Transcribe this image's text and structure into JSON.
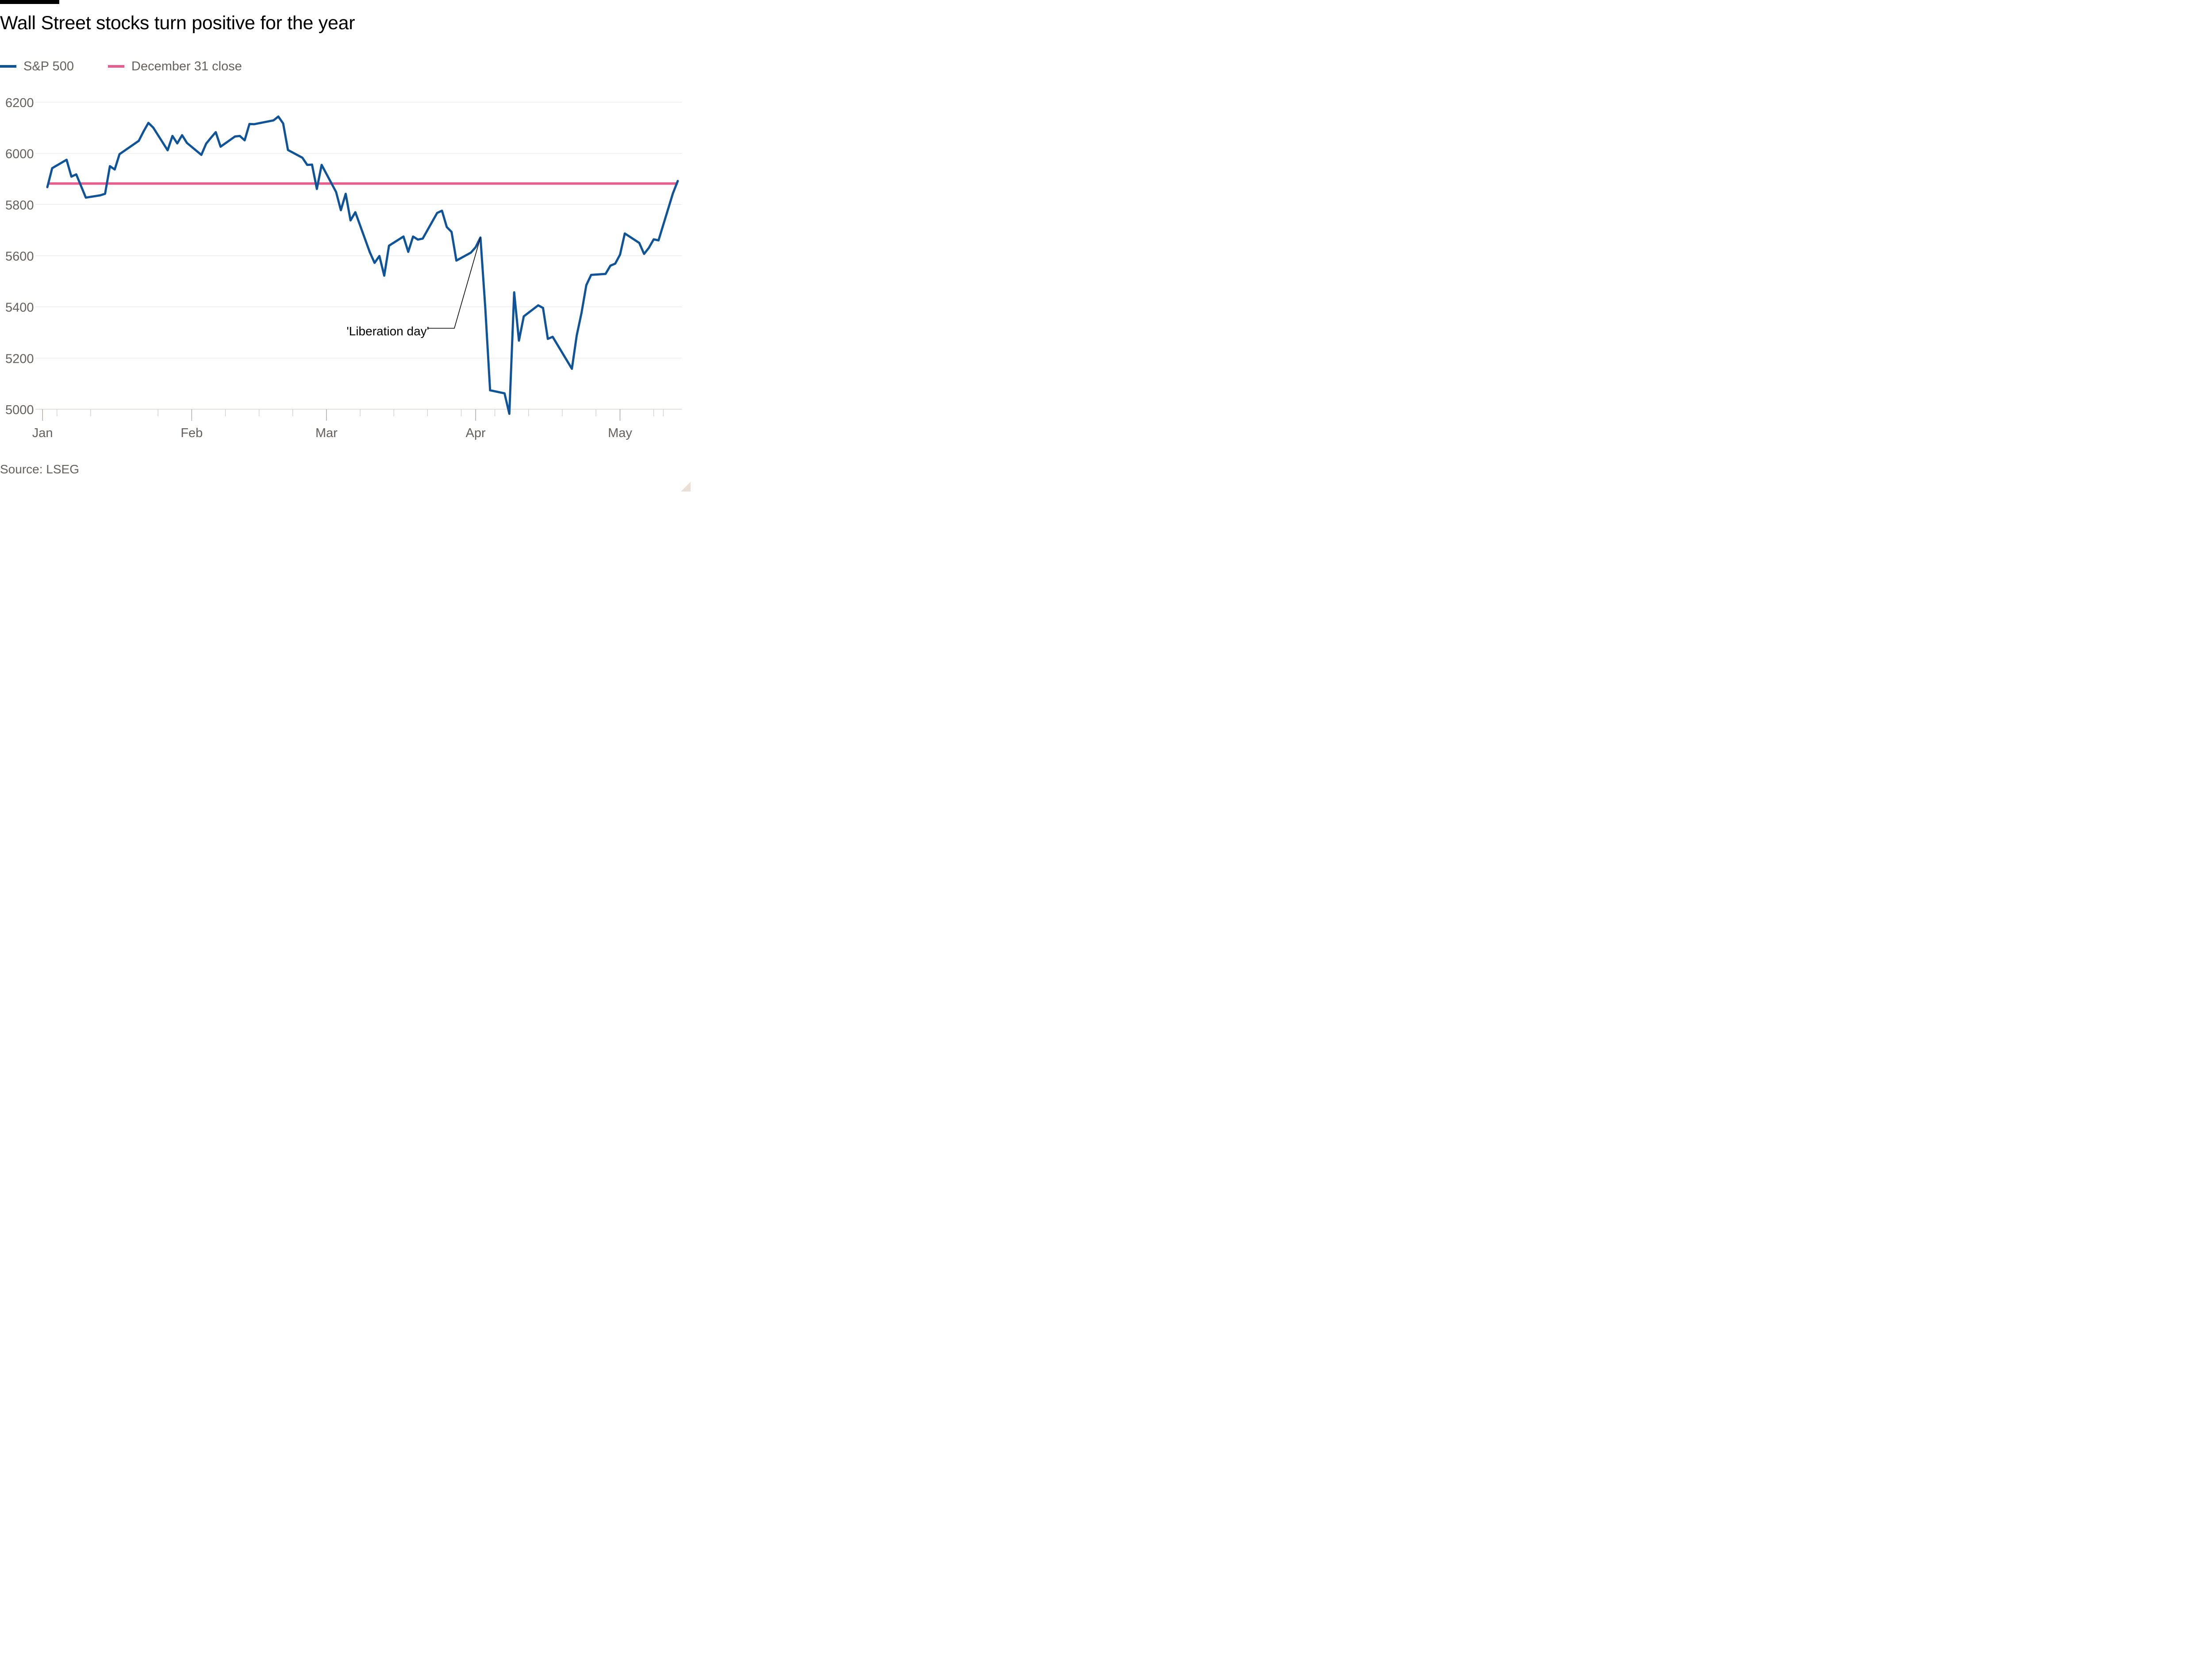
{
  "title": "Wall Street stocks turn positive for the year",
  "source": "Source: LSEG",
  "colors": {
    "sp500": "#0f5499",
    "reference": "#e95d8c",
    "grid": "#e6e3e0",
    "axis_text": "#66605c",
    "background": "#ffffff"
  },
  "legend": [
    {
      "label": "S&P 500",
      "color": "#0f5499"
    },
    {
      "label": "December 31 close",
      "color": "#e95d8c"
    }
  ],
  "chart_data": {
    "type": "line",
    "title": "Wall Street stocks turn positive for the year",
    "xlabel": "",
    "ylabel": "",
    "ylim": [
      5000,
      6200
    ],
    "xlim": [
      "2025-01-02",
      "2025-05-13"
    ],
    "y_ticks": [
      6200,
      6000,
      5800,
      5600,
      5400,
      5200,
      5000
    ],
    "x_tick_labels": [
      {
        "label": "Jan",
        "date": "2025-01-01"
      },
      {
        "label": "Feb",
        "date": "2025-02-01"
      },
      {
        "label": "Mar",
        "date": "2025-03-01"
      },
      {
        "label": "Apr",
        "date": "2025-04-01"
      },
      {
        "label": "May",
        "date": "2025-05-01"
      }
    ],
    "minor_ticks": [
      "2025-01-01",
      "2025-01-04",
      "2025-01-11",
      "2025-01-25",
      "2025-02-01",
      "2025-02-08",
      "2025-02-15",
      "2025-02-22",
      "2025-03-01",
      "2025-03-08",
      "2025-03-15",
      "2025-03-22",
      "2025-03-29",
      "2025-04-01",
      "2025-04-05",
      "2025-04-12",
      "2025-04-19",
      "2025-04-26",
      "2025-05-01",
      "2025-05-08",
      "2025-05-10"
    ],
    "grid": true,
    "legend_position": "top-left",
    "series": [
      {
        "name": "S&P 500",
        "color": "#0f5499",
        "points": [
          [
            "2025-01-02",
            5868
          ],
          [
            "2025-01-03",
            5942
          ],
          [
            "2025-01-06",
            5975
          ],
          [
            "2025-01-07",
            5909
          ],
          [
            "2025-01-08",
            5918
          ],
          [
            "2025-01-10",
            5827
          ],
          [
            "2025-01-13",
            5836
          ],
          [
            "2025-01-14",
            5842
          ],
          [
            "2025-01-15",
            5950
          ],
          [
            "2025-01-16",
            5937
          ],
          [
            "2025-01-17",
            5997
          ],
          [
            "2025-01-21",
            6049
          ],
          [
            "2025-01-22",
            6086
          ],
          [
            "2025-01-23",
            6119
          ],
          [
            "2025-01-24",
            6101
          ],
          [
            "2025-01-27",
            6012
          ],
          [
            "2025-01-28",
            6068
          ],
          [
            "2025-01-29",
            6039
          ],
          [
            "2025-01-30",
            6071
          ],
          [
            "2025-01-31",
            6041
          ],
          [
            "2025-02-03",
            5994
          ],
          [
            "2025-02-04",
            6038
          ],
          [
            "2025-02-05",
            6061
          ],
          [
            "2025-02-06",
            6083
          ],
          [
            "2025-02-07",
            6026
          ],
          [
            "2025-02-10",
            6066
          ],
          [
            "2025-02-11",
            6068
          ],
          [
            "2025-02-12",
            6051
          ],
          [
            "2025-02-13",
            6115
          ],
          [
            "2025-02-14",
            6114
          ],
          [
            "2025-02-18",
            6129
          ],
          [
            "2025-02-19",
            6144
          ],
          [
            "2025-02-20",
            6117
          ],
          [
            "2025-02-21",
            6013
          ],
          [
            "2025-02-24",
            5983
          ],
          [
            "2025-02-25",
            5955
          ],
          [
            "2025-02-26",
            5956
          ],
          [
            "2025-02-27",
            5861
          ],
          [
            "2025-02-28",
            5955
          ],
          [
            "2025-03-03",
            5849
          ],
          [
            "2025-03-04",
            5778
          ],
          [
            "2025-03-05",
            5842
          ],
          [
            "2025-03-06",
            5738
          ],
          [
            "2025-03-07",
            5770
          ],
          [
            "2025-03-10",
            5614
          ],
          [
            "2025-03-11",
            5572
          ],
          [
            "2025-03-12",
            5599
          ],
          [
            "2025-03-13",
            5522
          ],
          [
            "2025-03-14",
            5639
          ],
          [
            "2025-03-17",
            5675
          ],
          [
            "2025-03-18",
            5615
          ],
          [
            "2025-03-19",
            5675
          ],
          [
            "2025-03-20",
            5663
          ],
          [
            "2025-03-21",
            5667
          ],
          [
            "2025-03-24",
            5767
          ],
          [
            "2025-03-25",
            5776
          ],
          [
            "2025-03-26",
            5712
          ],
          [
            "2025-03-27",
            5693
          ],
          [
            "2025-03-28",
            5581
          ],
          [
            "2025-03-31",
            5612
          ],
          [
            "2025-04-01",
            5633
          ],
          [
            "2025-04-02",
            5671
          ],
          [
            "2025-04-03",
            5397
          ],
          [
            "2025-04-04",
            5074
          ],
          [
            "2025-04-07",
            5062
          ],
          [
            "2025-04-08",
            4982
          ],
          [
            "2025-04-09",
            5457
          ],
          [
            "2025-04-10",
            5268
          ],
          [
            "2025-04-11",
            5363
          ],
          [
            "2025-04-14",
            5406
          ],
          [
            "2025-04-15",
            5396
          ],
          [
            "2025-04-16",
            5275
          ],
          [
            "2025-04-17",
            5283
          ],
          [
            "2025-04-21",
            5158
          ],
          [
            "2025-04-22",
            5288
          ],
          [
            "2025-04-23",
            5376
          ],
          [
            "2025-04-24",
            5485
          ],
          [
            "2025-04-25",
            5525
          ],
          [
            "2025-04-28",
            5529
          ],
          [
            "2025-04-29",
            5561
          ],
          [
            "2025-04-30",
            5569
          ],
          [
            "2025-05-01",
            5604
          ],
          [
            "2025-05-02",
            5687
          ],
          [
            "2025-05-05",
            5650
          ],
          [
            "2025-05-06",
            5607
          ],
          [
            "2025-05-07",
            5631
          ],
          [
            "2025-05-08",
            5664
          ],
          [
            "2025-05-09",
            5660
          ],
          [
            "2025-05-12",
            5844
          ],
          [
            "2025-05-13",
            5892
          ]
        ]
      },
      {
        "name": "December 31 close",
        "color": "#e95d8c",
        "value": 5882
      }
    ],
    "annotations": [
      {
        "text": "'Liberation day'",
        "date": "2025-04-02",
        "value": 5671
      }
    ]
  }
}
